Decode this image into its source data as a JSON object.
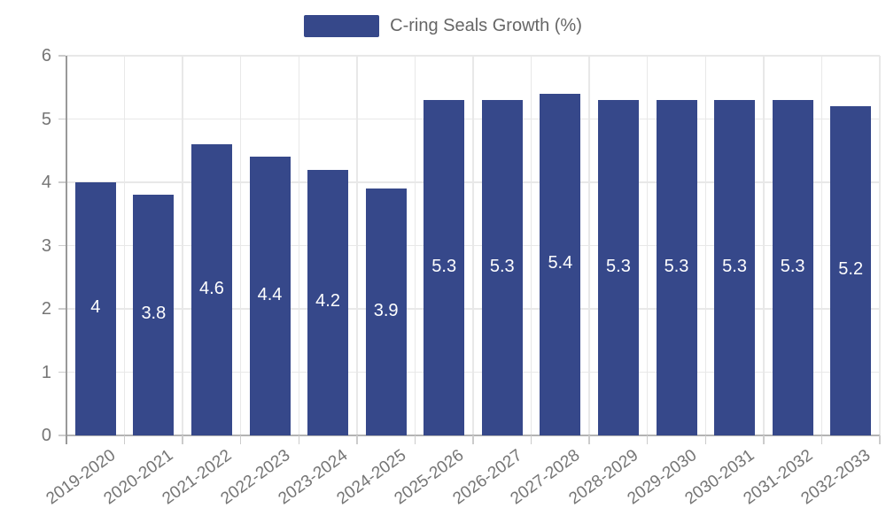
{
  "chart_data": {
    "type": "bar",
    "title": "",
    "xlabel": "",
    "ylabel": "",
    "categories": [
      "2019-2020",
      "2020-2021",
      "2021-2022",
      "2022-2023",
      "2023-2024",
      "2024-2025",
      "2025-2026",
      "2026-2027",
      "2027-2028",
      "2028-2029",
      "2029-2030",
      "2030-2031",
      "2031-2032",
      "2032-2033"
    ],
    "series": [
      {
        "name": "C-ring Seals Growth (%)",
        "values": [
          4,
          3.8,
          4.6,
          4.4,
          4.2,
          3.9,
          5.3,
          5.3,
          5.4,
          5.3,
          5.3,
          5.3,
          5.3,
          5.2
        ],
        "color": "#36488A"
      }
    ],
    "legend": [
      "C-ring Seals Growth (%)"
    ],
    "legend_position": "top",
    "value_labels_position": "inside-center",
    "ylim": [
      0,
      6
    ],
    "yticks": [
      0,
      1,
      2,
      3,
      4,
      5,
      6
    ],
    "grid": true,
    "x_label_rotation_deg": -36,
    "colors": {
      "bar": "#36488A",
      "value_label": "#ffffff",
      "grid_line": "#e8e8e8",
      "zero_line": "#b3b3b3",
      "y_axis_line": "#999999",
      "tick_mark": "#cccccc",
      "axis_label": "#757575",
      "legend_text": "#666666",
      "background": "#ffffff"
    }
  }
}
